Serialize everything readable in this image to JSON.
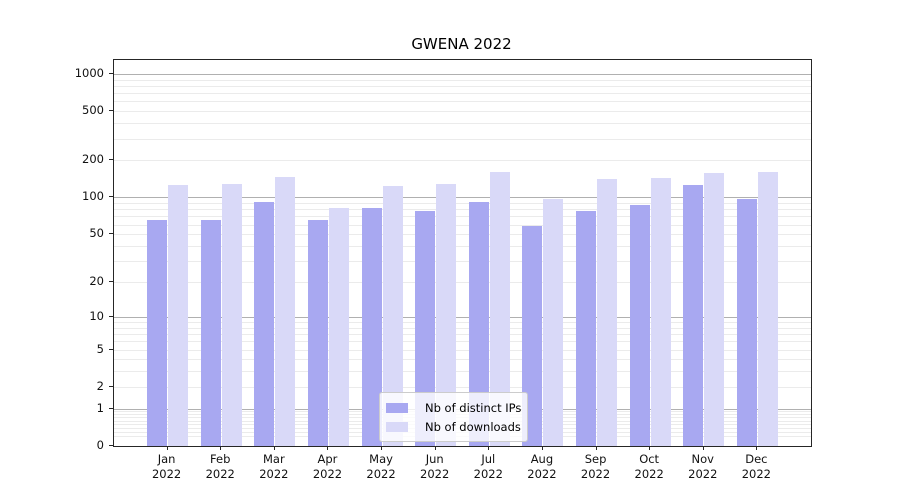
{
  "chart_data": {
    "type": "bar",
    "title": "GWENA 2022",
    "categories": [
      "Jan",
      "Feb",
      "Mar",
      "Apr",
      "May",
      "Jun",
      "Jul",
      "Aug",
      "Sep",
      "Oct",
      "Nov",
      "Dec"
    ],
    "category_year": "2022",
    "series": [
      {
        "name": "Nb of distinct IPs",
        "color": "#a8a8f1",
        "values": [
          66,
          65,
          92,
          66,
          82,
          77,
          92,
          58,
          77,
          86,
          126,
          98
        ]
      },
      {
        "name": "Nb of downloads",
        "color": "#d9d9f8",
        "values": [
          126,
          129,
          146,
          82,
          124,
          128,
          161,
          97,
          140,
          144,
          159,
          161
        ]
      }
    ],
    "yscale": "log1p",
    "ytick_labels": [
      "1000",
      "500",
      "200",
      "100",
      "50",
      "20",
      "10",
      "5",
      "2",
      "1",
      "0"
    ],
    "ytick_values": [
      1000,
      500,
      200,
      100,
      50,
      20,
      10,
      5,
      2,
      1,
      0
    ],
    "ylim": [
      0,
      1300
    ],
    "xlabel": "",
    "ylabel": "",
    "grid": {
      "orientation": "horizontal",
      "major_color": "#b0b0b0",
      "minor_color": "#ebebeb"
    },
    "legend_position": "lower center"
  }
}
